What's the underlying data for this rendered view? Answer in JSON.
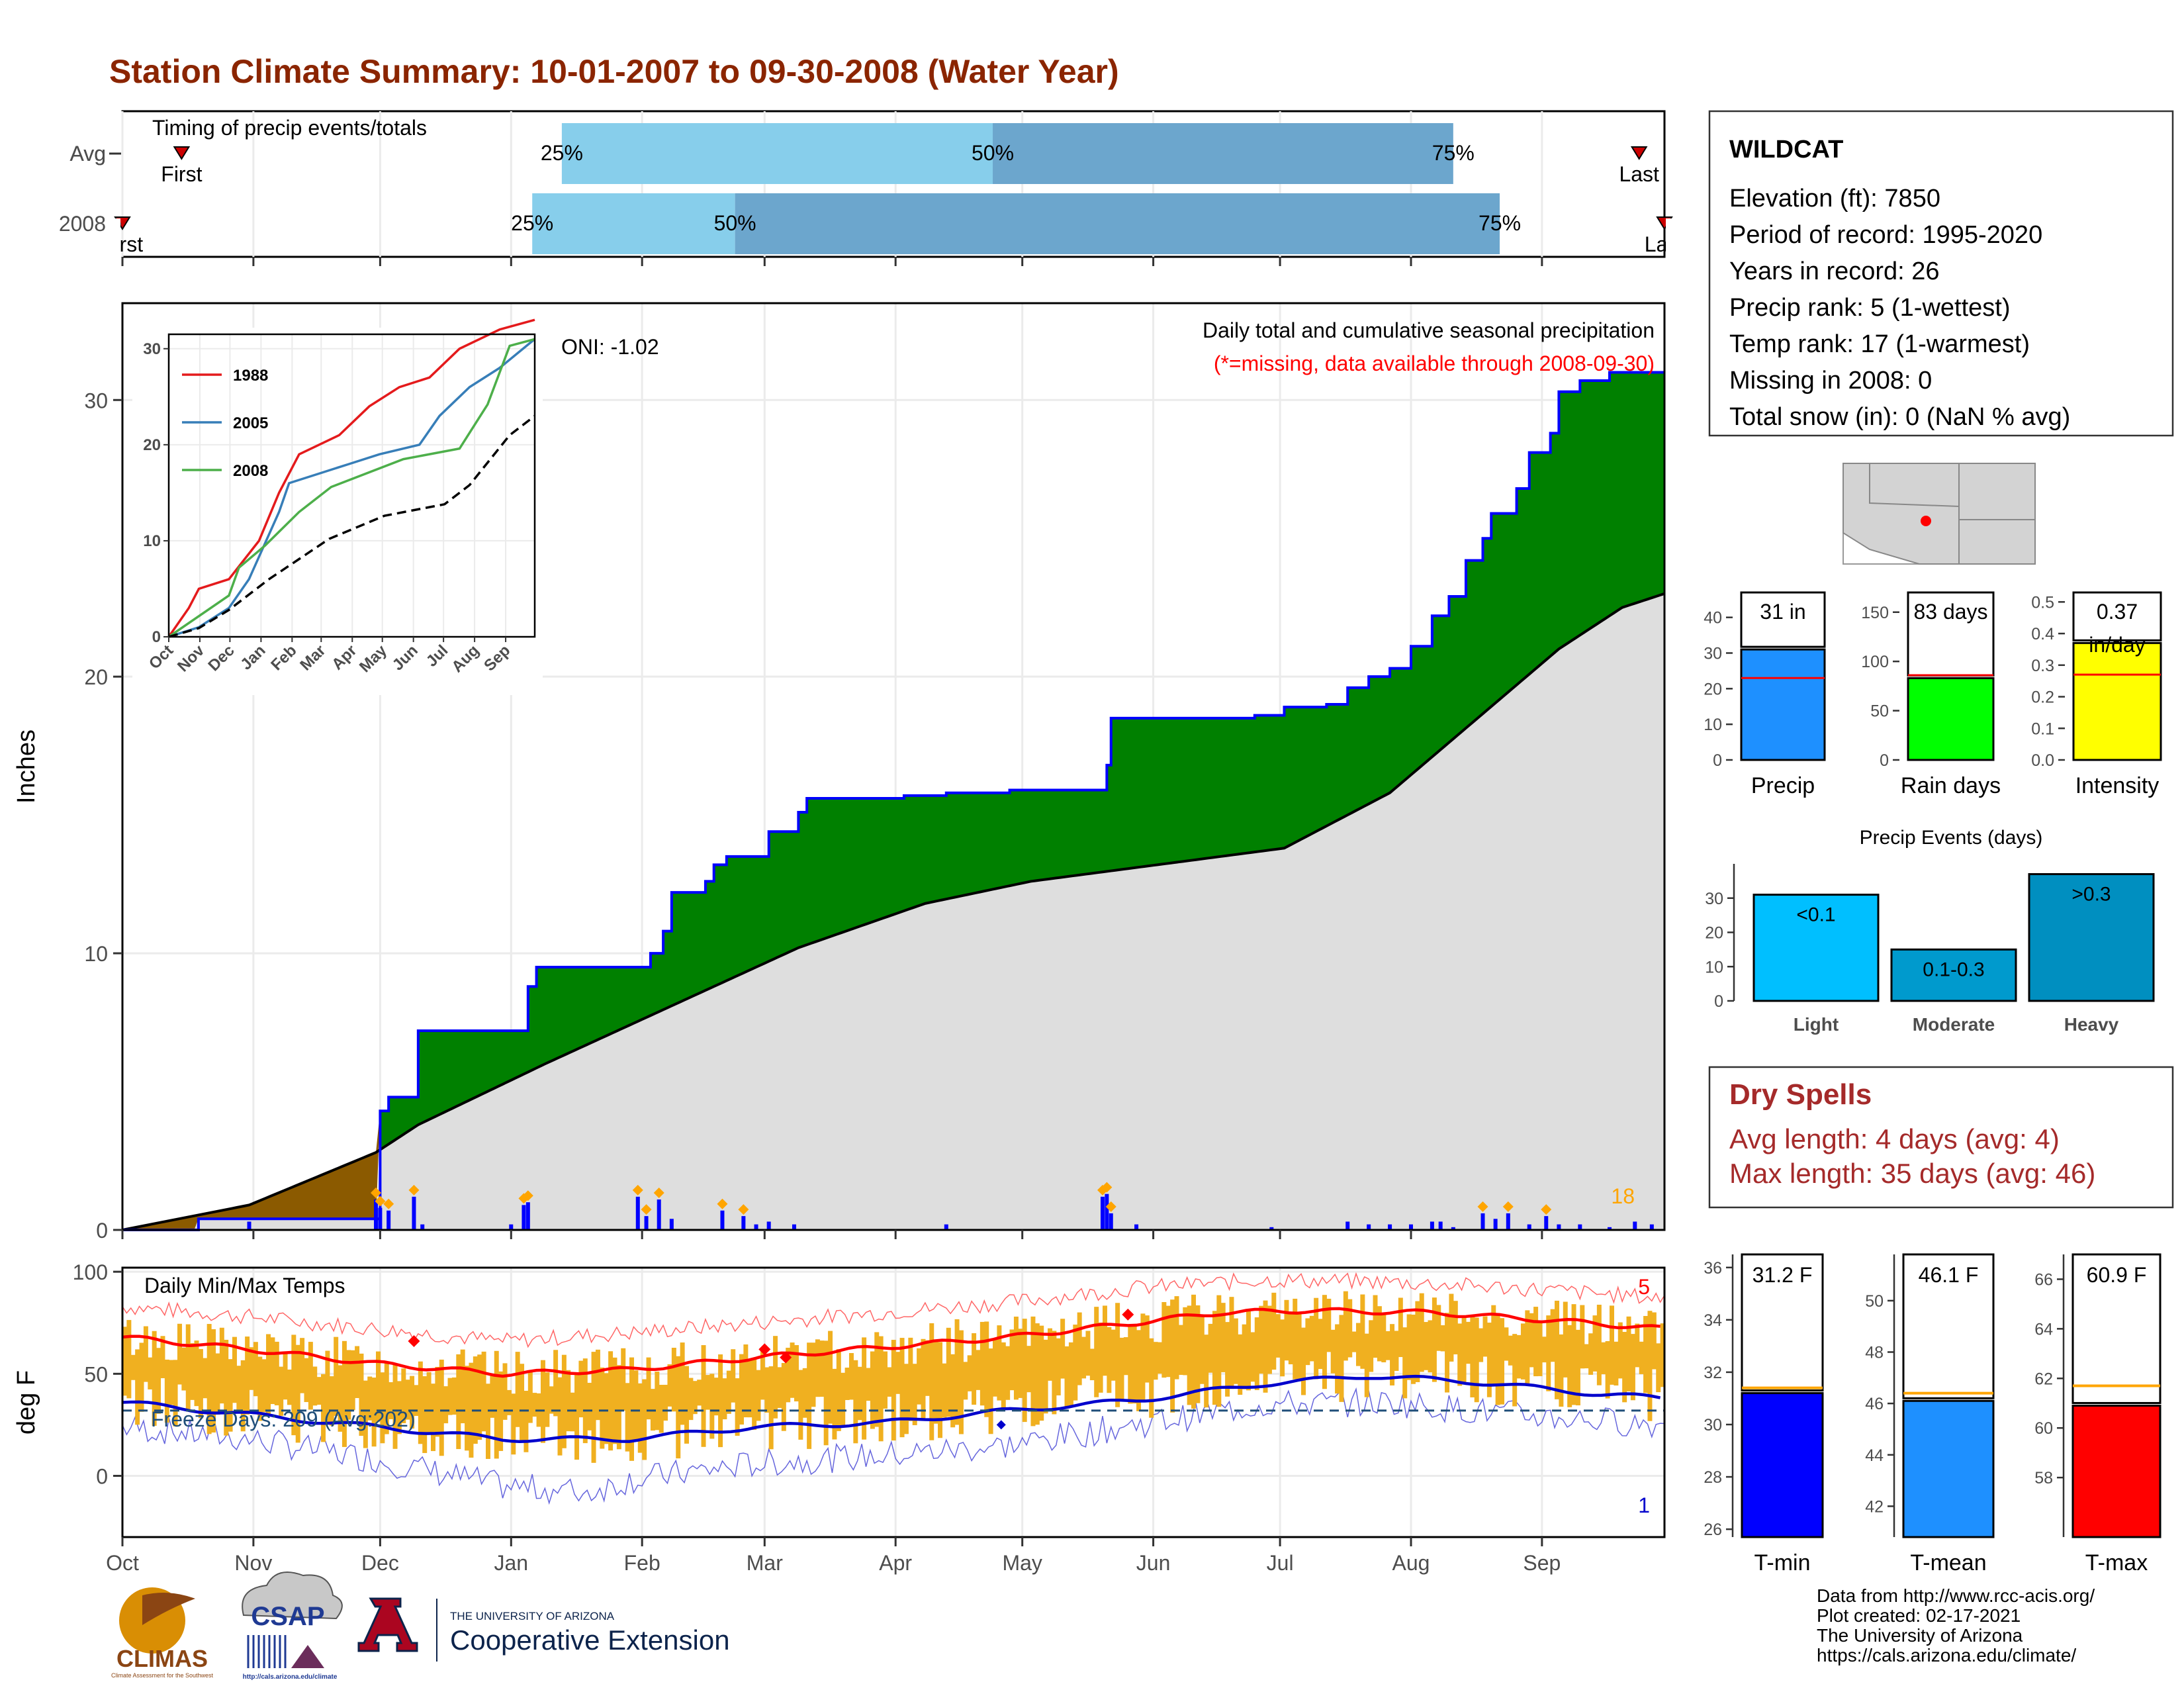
{
  "title": "Station Climate Summary: 10-01-2007 to 09-30-2008 (Water Year)",
  "colors": {
    "title": "#8B2500",
    "precip_cum": "#008000",
    "precip_avg": "#DEDEDE",
    "deficit": "#8B5A00",
    "daily_bar": "#0000FF",
    "temp_bar": "#F0B020",
    "tmax": "#FF0000",
    "tmin": "#0000CC",
    "timing_light": "#87CEEB",
    "timing_dark": "#6CA6CD"
  },
  "timing": {
    "label": "Timing of precip events/totals",
    "rows": [
      {
        "name": "Avg",
        "first": "2007-10-15",
        "p25": "2008-01-13",
        "p50": "2008-04-24",
        "p75": "2008-08-11",
        "last": "2008-09-24",
        "first_label": "First",
        "last_label": "Last",
        "p25_label": "25%",
        "p50_label": "50%",
        "p75_label": "75%"
      },
      {
        "name": "2008",
        "first": "2007-10-01",
        "p25": "2008-01-06",
        "p50": "2008-02-23",
        "p75": "2008-08-22",
        "last": "2008-09-30",
        "first_label": "First",
        "last_label": "Last",
        "p25_label": "25%",
        "p50_label": "50%",
        "p75_label": "75%"
      }
    ]
  },
  "months": [
    "Oct",
    "Nov",
    "Dec",
    "Jan",
    "Feb",
    "Mar",
    "Apr",
    "May",
    "Jun",
    "Jul",
    "Aug",
    "Sep"
  ],
  "precip": {
    "ylabel": "Inches",
    "yticks": [
      0,
      10,
      20,
      30
    ],
    "ylim": [
      0,
      33.5
    ],
    "label_title": "Daily total and cumulative seasonal precipitation",
    "label_missing": "(*=missing, data available through 2008-09-30)",
    "oni": "ONI: -1.02",
    "count_label": "18"
  },
  "chart_data": [
    {
      "type": "area",
      "name": "Cumulative seasonal precipitation",
      "x_unit": "day of water year (0 = Oct 1)",
      "cumulative_2008": [
        [
          0,
          0
        ],
        [
          18,
          0.4
        ],
        [
          60,
          0.4
        ],
        [
          61,
          4.3
        ],
        [
          63,
          4.8
        ],
        [
          70,
          7.2
        ],
        [
          95,
          7.2
        ],
        [
          96,
          8.8
        ],
        [
          98,
          9.5
        ],
        [
          125,
          10.0
        ],
        [
          128,
          10.8
        ],
        [
          130,
          12.2
        ],
        [
          138,
          12.6
        ],
        [
          140,
          13.2
        ],
        [
          143,
          13.5
        ],
        [
          149,
          13.5
        ],
        [
          153,
          14.4
        ],
        [
          160,
          15.1
        ],
        [
          162,
          15.6
        ],
        [
          175,
          15.6
        ],
        [
          185,
          15.7
        ],
        [
          195,
          15.8
        ],
        [
          210,
          15.9
        ],
        [
          230,
          15.9
        ],
        [
          233,
          16.8
        ],
        [
          234,
          18.5
        ],
        [
          260,
          18.5
        ],
        [
          268,
          18.6
        ],
        [
          275,
          18.9
        ],
        [
          285,
          19.0
        ],
        [
          290,
          19.6
        ],
        [
          295,
          20.0
        ],
        [
          300,
          20.3
        ],
        [
          305,
          21.1
        ],
        [
          310,
          22.2
        ],
        [
          314,
          22.9
        ],
        [
          318,
          24.2
        ],
        [
          322,
          25.0
        ],
        [
          324,
          25.9
        ],
        [
          330,
          26.8
        ],
        [
          333,
          28.1
        ],
        [
          338,
          28.8
        ],
        [
          340,
          30.3
        ],
        [
          345,
          30.7
        ],
        [
          352,
          31.0
        ],
        [
          365,
          31.0
        ]
      ],
      "average": [
        [
          0,
          0
        ],
        [
          30,
          0.9
        ],
        [
          60,
          2.8
        ],
        [
          70,
          3.8
        ],
        [
          100,
          6.0
        ],
        [
          130,
          8.1
        ],
        [
          160,
          10.2
        ],
        [
          190,
          11.8
        ],
        [
          215,
          12.6
        ],
        [
          245,
          13.2
        ],
        [
          275,
          13.8
        ],
        [
          300,
          15.8
        ],
        [
          320,
          18.4
        ],
        [
          340,
          21.0
        ],
        [
          355,
          22.5
        ],
        [
          365,
          23.0
        ]
      ]
    },
    {
      "type": "bar",
      "name": "Daily precipitation (in)",
      "days": [
        30,
        60,
        61,
        63,
        69,
        71,
        92,
        95,
        96,
        122,
        124,
        127,
        130,
        142,
        147,
        150,
        153,
        159,
        195,
        232,
        233,
        234,
        240,
        272,
        290,
        295,
        300,
        305,
        310,
        312,
        315,
        322,
        325,
        328,
        333,
        337,
        340,
        345,
        352,
        358,
        362
      ],
      "values": [
        0.3,
        1.1,
        0.8,
        0.7,
        1.2,
        0.2,
        0.2,
        0.9,
        1.0,
        1.2,
        0.5,
        1.1,
        0.4,
        0.7,
        0.5,
        0.2,
        0.3,
        0.2,
        0.2,
        1.2,
        1.3,
        0.6,
        0.2,
        0.1,
        0.3,
        0.2,
        0.2,
        0.2,
        0.3,
        0.3,
        0.1,
        0.6,
        0.4,
        0.6,
        0.2,
        0.5,
        0.2,
        0.2,
        0.1,
        0.3,
        0.2
      ]
    },
    {
      "type": "line",
      "name": "Inset cumulative precip (in)",
      "yticks": [
        0,
        10,
        20,
        30
      ],
      "ylim": [
        0,
        31.5
      ],
      "xticks": [
        "Oct",
        "Nov",
        "Dec",
        "Jan",
        "Feb",
        "Mar",
        "Apr",
        "May",
        "Jun",
        "Jul",
        "Aug",
        "Sep"
      ],
      "series": [
        {
          "name": "1988",
          "color": "#E41A1C",
          "points": [
            [
              0,
              0
            ],
            [
              20,
              3
            ],
            [
              30,
              5
            ],
            [
              60,
              6
            ],
            [
              90,
              10
            ],
            [
              110,
              15
            ],
            [
              130,
              19
            ],
            [
              170,
              21
            ],
            [
              200,
              24
            ],
            [
              230,
              26
            ],
            [
              260,
              27
            ],
            [
              290,
              30
            ],
            [
              330,
              32
            ],
            [
              365,
              33
            ]
          ]
        },
        {
          "name": "2005",
          "color": "#377EB8",
          "points": [
            [
              0,
              0
            ],
            [
              30,
              1
            ],
            [
              60,
              3
            ],
            [
              80,
              6
            ],
            [
              110,
              13
            ],
            [
              120,
              16
            ],
            [
              150,
              17
            ],
            [
              180,
              18
            ],
            [
              210,
              19
            ],
            [
              250,
              20
            ],
            [
              270,
              23
            ],
            [
              300,
              26
            ],
            [
              330,
              28
            ],
            [
              365,
              31
            ]
          ]
        },
        {
          "name": "2008",
          "color": "#4DAF4A",
          "points": [
            [
              0,
              0
            ],
            [
              60,
              4.3
            ],
            [
              70,
              7.2
            ],
            [
              96,
              9.5
            ],
            [
              130,
              13
            ],
            [
              162,
              15.6
            ],
            [
              234,
              18.5
            ],
            [
              290,
              19.6
            ],
            [
              318,
              24.2
            ],
            [
              340,
              30.3
            ],
            [
              365,
              31
            ]
          ]
        },
        {
          "name": "Average",
          "color": "#000000",
          "dashed": true,
          "points": [
            [
              0,
              0
            ],
            [
              30,
              0.9
            ],
            [
              60,
              2.8
            ],
            [
              100,
              6
            ],
            [
              130,
              8.1
            ],
            [
              160,
              10.2
            ],
            [
              215,
              12.6
            ],
            [
              275,
              13.8
            ],
            [
              300,
              15.8
            ],
            [
              340,
              21
            ],
            [
              365,
              23
            ]
          ]
        }
      ]
    },
    {
      "type": "line",
      "name": "Daily Min/Max Temps (deg F)",
      "ylabel": "deg F",
      "yticks": [
        0,
        50,
        100
      ],
      "ylim": [
        -30,
        102
      ],
      "tmax_smooth": [
        [
          0,
          68
        ],
        [
          30,
          62
        ],
        [
          60,
          55
        ],
        [
          90,
          50
        ],
        [
          120,
          52
        ],
        [
          150,
          58
        ],
        [
          180,
          63
        ],
        [
          210,
          68
        ],
        [
          240,
          75
        ],
        [
          260,
          80
        ],
        [
          280,
          81
        ],
        [
          310,
          80
        ],
        [
          340,
          76
        ],
        [
          365,
          72
        ]
      ],
      "tmin_smooth": [
        [
          0,
          36
        ],
        [
          30,
          30
        ],
        [
          60,
          24
        ],
        [
          90,
          18
        ],
        [
          120,
          18
        ],
        [
          150,
          24
        ],
        [
          180,
          26
        ],
        [
          210,
          32
        ],
        [
          240,
          37
        ],
        [
          270,
          45
        ],
        [
          295,
          49
        ],
        [
          320,
          46
        ],
        [
          350,
          40
        ],
        [
          365,
          38
        ]
      ],
      "tmax_record": [
        [
          0,
          83
        ],
        [
          30,
          78
        ],
        [
          60,
          72
        ],
        [
          90,
          66
        ],
        [
          120,
          70
        ],
        [
          150,
          75
        ],
        [
          180,
          80
        ],
        [
          210,
          85
        ],
        [
          240,
          92
        ],
        [
          270,
          96
        ],
        [
          300,
          95
        ],
        [
          330,
          92
        ],
        [
          365,
          87
        ]
      ],
      "tmin_record": [
        [
          0,
          24
        ],
        [
          30,
          18
        ],
        [
          60,
          8
        ],
        [
          90,
          -5
        ],
        [
          110,
          -8
        ],
        [
          120,
          -2
        ],
        [
          150,
          6
        ],
        [
          180,
          10
        ],
        [
          210,
          15
        ],
        [
          240,
          25
        ],
        [
          270,
          35
        ],
        [
          300,
          36
        ],
        [
          330,
          30
        ],
        [
          365,
          25
        ]
      ],
      "freeze_line": 32
    }
  ],
  "temps": {
    "label": "Daily Min/Max Temps",
    "freeze_label": "Freeze Days: 209 (Avg:202)",
    "record_high_count": "5",
    "record_low_count": "1"
  },
  "station": {
    "name": "WILDCAT",
    "lines": [
      "Elevation (ft): 7850",
      "Period of record: 1995-2020",
      "Years in record: 26",
      "Precip rank: 5 (1-wettest)",
      "Temp rank: 17 (1-warmest)",
      "Missing in 2008: 0",
      "Total snow (in): 0 (NaN % avg)"
    ]
  },
  "summary_bars": [
    {
      "name": "Precip",
      "value": 31,
      "label": "31 in",
      "avg": 23,
      "max": 47,
      "ticks": [
        0,
        10,
        20,
        30,
        40
      ],
      "color": "#1E90FF"
    },
    {
      "name": "Rain days",
      "value": 83,
      "label": "83 days",
      "avg": 86,
      "max": 170,
      "ticks": [
        0,
        50,
        100,
        150
      ],
      "color": "#00FF00"
    },
    {
      "name": "Intensity",
      "value": 0.37,
      "label": "0.37",
      "label2": "in/day",
      "avg": 0.27,
      "max": 0.53,
      "ticks": [
        0.0,
        0.1,
        0.2,
        0.3,
        0.4,
        0.5
      ],
      "color": "#FFFF00"
    }
  ],
  "events": {
    "title": "Precip Events (days)",
    "ticks": [
      0,
      10,
      20,
      30
    ],
    "max": 40,
    "bars": [
      {
        "name": "Light",
        "value": 31,
        "label": "<0.1",
        "color": "#00BFFF"
      },
      {
        "name": "Moderate",
        "value": 15,
        "label": "0.1-0.3",
        "color": "#009ACD"
      },
      {
        "name": "Heavy",
        "value": 37,
        "label": ">0.3",
        "color": "#008FC0"
      }
    ]
  },
  "dry_spells": {
    "title": "Dry Spells",
    "avg_length": "Avg length: 4 days (avg: 4)",
    "max_length": "Max length: 35 days (avg: 46)"
  },
  "temp_bars": [
    {
      "name": "T-min",
      "value": 31.2,
      "label": "31.2 F",
      "avg": 31.4,
      "range": [
        25.7,
        36.5
      ],
      "ticks": [
        26,
        28,
        30,
        32,
        34,
        36
      ],
      "color": "#0000FF"
    },
    {
      "name": "T-mean",
      "value": 46.1,
      "label": "46.1 F",
      "avg": 46.4,
      "range": [
        40.8,
        51.8
      ],
      "ticks": [
        42,
        44,
        46,
        48,
        50
      ],
      "color": "#1E90FF"
    },
    {
      "name": "T-max",
      "value": 60.9,
      "label": "60.9 F",
      "avg": 61.7,
      "range": [
        55.6,
        67.0
      ],
      "ticks": [
        58,
        60,
        62,
        64,
        66
      ],
      "color": "#FF0000"
    }
  ],
  "credits": [
    "Data from http://www.rcc-acis.org/",
    "Plot created: 02-17-2021",
    "The University of Arizona",
    "https://cals.arizona.edu/climate/"
  ],
  "logos": {
    "climas": "CLIMAS",
    "climas_sub": "Climate Assessment for the Southwest",
    "csap": "CSAP",
    "csap_url": "http://cals.arizona.edu/climate",
    "ua_small": "THE UNIVERSITY OF ARIZONA",
    "ua_big": "Cooperative Extension"
  }
}
